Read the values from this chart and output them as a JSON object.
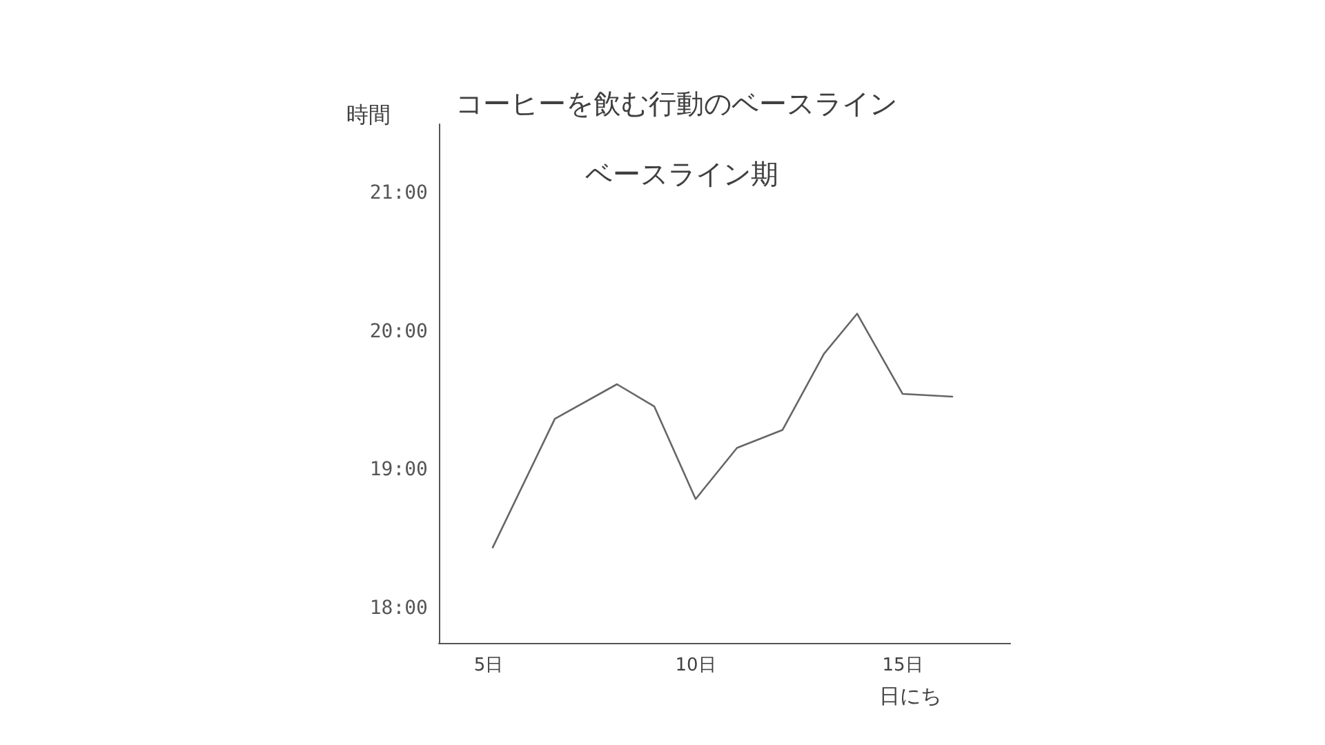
{
  "chart_data": {
    "type": "line",
    "title": "コーヒーを飲む行動のベースライン",
    "xlabel": "日にち",
    "ylabel": "時間",
    "annotations": [
      "ベースライン期"
    ],
    "x": [
      5.1,
      6.6,
      8.1,
      9.0,
      10.0,
      11.0,
      12.1,
      13.1,
      13.9,
      15.0,
      16.2
    ],
    "series": [
      {
        "color": "#666666",
        "values": [
          18.44,
          19.37,
          19.62,
          19.46,
          18.79,
          19.16,
          19.29,
          19.84,
          20.13,
          19.55,
          19.53
        ]
      }
    ],
    "xlim": [
      3.8,
      17.6
    ],
    "xticks": [
      {
        "value": 5,
        "label": "5日"
      },
      {
        "value": 10,
        "label": "10日"
      },
      {
        "value": 15,
        "label": "15日"
      }
    ],
    "ylim": [
      17.75,
      21.5
    ],
    "yticks": [
      {
        "value": 18,
        "label": "18:00"
      },
      {
        "value": 19,
        "label": "19:00"
      },
      {
        "value": 20,
        "label": "20:00"
      },
      {
        "value": 21,
        "label": "21:00"
      }
    ],
    "grid": false,
    "marker": "none",
    "line_style": "solid"
  }
}
